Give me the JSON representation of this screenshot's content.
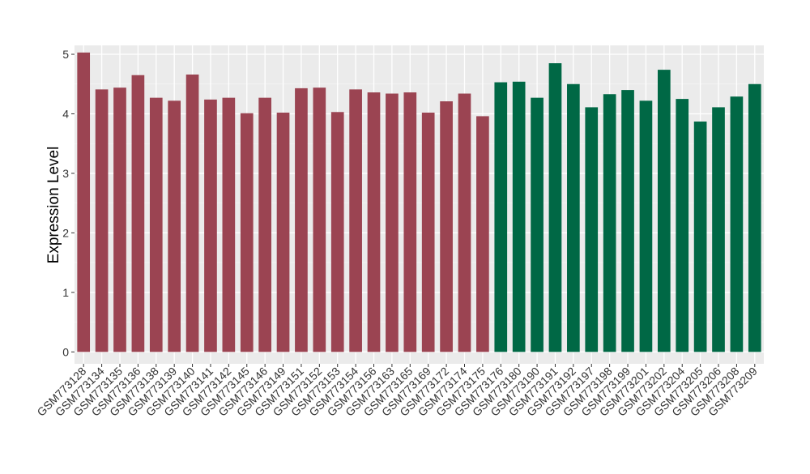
{
  "chart_data": {
    "type": "bar",
    "ylabel": "Expression Level",
    "xlabel": "",
    "ylim": [
      -0.2,
      5.15
    ],
    "yticks": [
      0,
      1,
      2,
      3,
      4,
      5
    ],
    "grid": true,
    "categories": [
      "GSM773128",
      "GSM773134",
      "GSM773135",
      "GSM773136",
      "GSM773138",
      "GSM773139",
      "GSM773140",
      "GSM773141",
      "GSM773142",
      "GSM773145",
      "GSM773146",
      "GSM773149",
      "GSM773151",
      "GSM773152",
      "GSM773153",
      "GSM773154",
      "GSM773156",
      "GSM773163",
      "GSM773165",
      "GSM773169",
      "GSM773172",
      "GSM773174",
      "GSM773175",
      "GSM773176",
      "GSM773180",
      "GSM773190",
      "GSM773191",
      "GSM773192",
      "GSM773197",
      "GSM773198",
      "GSM773199",
      "GSM773201",
      "GSM773202",
      "GSM773204",
      "GSM773205",
      "GSM773206",
      "GSM773208",
      "GSM773209"
    ],
    "values": [
      5.03,
      4.41,
      4.44,
      4.65,
      4.27,
      4.22,
      4.66,
      4.24,
      4.27,
      4.01,
      4.27,
      4.02,
      4.43,
      4.44,
      4.03,
      4.41,
      4.36,
      4.34,
      4.36,
      4.02,
      4.21,
      4.34,
      3.96,
      4.53,
      4.54,
      4.27,
      4.85,
      4.5,
      4.11,
      4.33,
      4.4,
      4.22,
      4.74,
      4.25,
      3.87,
      4.11,
      4.29,
      4.5
    ],
    "groups": [
      0,
      0,
      0,
      0,
      0,
      0,
      0,
      0,
      0,
      0,
      0,
      0,
      0,
      0,
      0,
      0,
      0,
      0,
      0,
      0,
      0,
      0,
      0,
      1,
      1,
      1,
      1,
      1,
      1,
      1,
      1,
      1,
      1,
      1,
      1,
      1,
      1,
      1
    ],
    "colors": {
      "group0": "#9B4452",
      "group1": "#006845",
      "panel": "#EBEBEB",
      "grid_major": "#FFFFFF",
      "grid_minor": "#F5F5F5",
      "text": "#333333",
      "axis_title": "#000000"
    }
  }
}
